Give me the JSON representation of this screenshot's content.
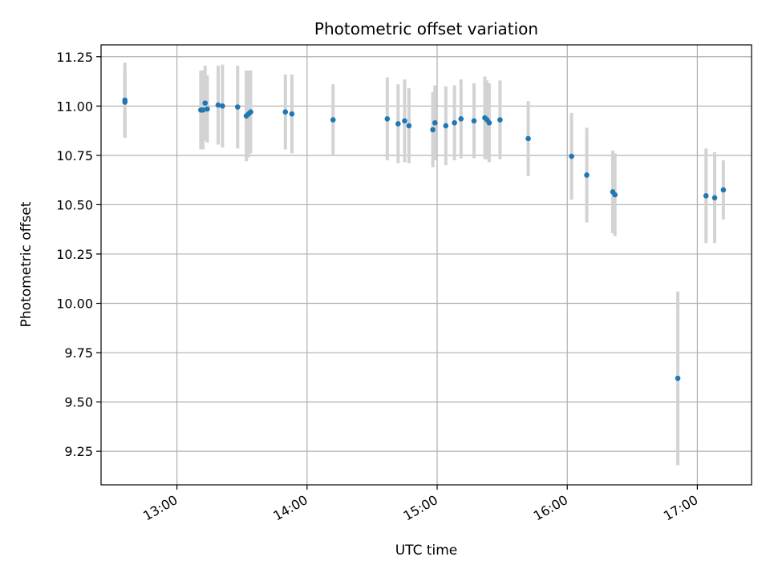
{
  "chart_data": {
    "type": "scatter",
    "title": "Photometric offset variation",
    "xlabel": "UTC time",
    "ylabel": "Photometric offset",
    "x_tick_labels": [
      "13:00",
      "14:00",
      "15:00",
      "16:00",
      "17:00"
    ],
    "y_tick_labels": [
      "9.25",
      "9.50",
      "9.75",
      "10.00",
      "10.25",
      "10.50",
      "10.75",
      "11.00",
      "11.25"
    ],
    "xlim": [
      "12:25",
      "17:25"
    ],
    "ylim": [
      9.08,
      11.31
    ],
    "grid": true,
    "colors": {
      "point": "#1f77b4",
      "errorbar": "#d3d3d3"
    },
    "series": [
      {
        "points": [
          {
            "x": "12:36",
            "y": 11.03,
            "err": 0.19
          },
          {
            "x": "12:36",
            "y": 11.02,
            "err": 0.18
          },
          {
            "x": "13:11",
            "y": 10.98,
            "err": 0.2
          },
          {
            "x": "13:12",
            "y": 10.98,
            "err": 0.2
          },
          {
            "x": "13:13",
            "y": 11.015,
            "err": 0.19
          },
          {
            "x": "13:14",
            "y": 10.985,
            "err": 0.17
          },
          {
            "x": "13:19",
            "y": 11.005,
            "err": 0.2
          },
          {
            "x": "13:21",
            "y": 11.0,
            "err": 0.21
          },
          {
            "x": "13:28",
            "y": 10.995,
            "err": 0.21
          },
          {
            "x": "13:32",
            "y": 10.95,
            "err": 0.23
          },
          {
            "x": "13:33",
            "y": 10.96,
            "err": 0.22
          },
          {
            "x": "13:34",
            "y": 10.97,
            "err": 0.21
          },
          {
            "x": "13:50",
            "y": 10.97,
            "err": 0.19
          },
          {
            "x": "13:53",
            "y": 10.96,
            "err": 0.2
          },
          {
            "x": "14:12",
            "y": 10.93,
            "err": 0.18
          },
          {
            "x": "14:37",
            "y": 10.935,
            "err": 0.21
          },
          {
            "x": "14:42",
            "y": 10.91,
            "err": 0.2
          },
          {
            "x": "14:45",
            "y": 10.925,
            "err": 0.21
          },
          {
            "x": "14:47",
            "y": 10.9,
            "err": 0.19
          },
          {
            "x": "14:58",
            "y": 10.88,
            "err": 0.19
          },
          {
            "x": "14:59",
            "y": 10.915,
            "err": 0.19
          },
          {
            "x": "15:04",
            "y": 10.9,
            "err": 0.2
          },
          {
            "x": "15:08",
            "y": 10.915,
            "err": 0.19
          },
          {
            "x": "15:11",
            "y": 10.935,
            "err": 0.2
          },
          {
            "x": "15:17",
            "y": 10.925,
            "err": 0.19
          },
          {
            "x": "15:22",
            "y": 10.94,
            "err": 0.21
          },
          {
            "x": "15:23",
            "y": 10.93,
            "err": 0.2
          },
          {
            "x": "15:24",
            "y": 10.915,
            "err": 0.2
          },
          {
            "x": "15:29",
            "y": 10.93,
            "err": 0.2
          },
          {
            "x": "15:42",
            "y": 10.835,
            "err": 0.19
          },
          {
            "x": "16:02",
            "y": 10.745,
            "err": 0.22
          },
          {
            "x": "16:09",
            "y": 10.65,
            "err": 0.24
          },
          {
            "x": "16:21",
            "y": 10.565,
            "err": 0.21
          },
          {
            "x": "16:22",
            "y": 10.55,
            "err": 0.21
          },
          {
            "x": "16:51",
            "y": 9.62,
            "err": 0.44
          },
          {
            "x": "17:04",
            "y": 10.545,
            "err": 0.24
          },
          {
            "x": "17:08",
            "y": 10.535,
            "err": 0.23
          },
          {
            "x": "17:12",
            "y": 10.575,
            "err": 0.15
          }
        ]
      }
    ]
  }
}
